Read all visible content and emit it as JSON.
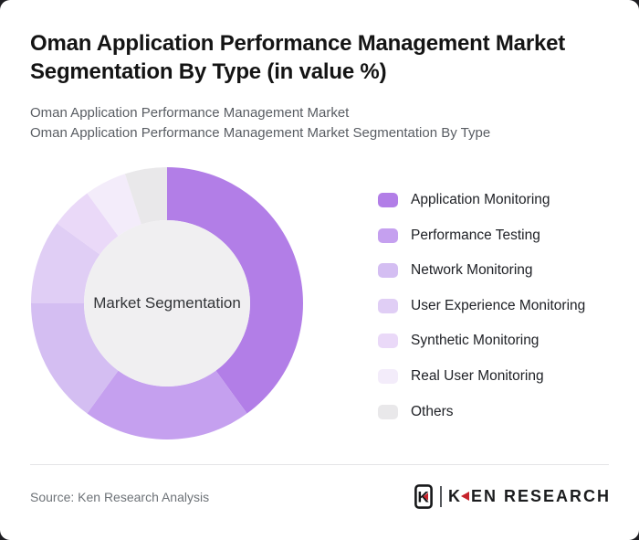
{
  "header": {
    "title_lines": [
      "Oman Application Performance Management Market",
      "Segmentation By Type (in value %)"
    ],
    "subtitle_lines": [
      "Oman Application Performance Management Market",
      "Oman Application Performance Management Market Segmentation By Type"
    ]
  },
  "chart_data": {
    "type": "pie",
    "variant": "donut",
    "title": "Oman Application Performance Management Market Segmentation By Type (in value %)",
    "center_label": "Market Segmentation",
    "categories": [
      "Application Monitoring",
      "Performance Testing",
      "Network Monitoring",
      "User Experience Monitoring",
      "Synthetic Monitoring",
      "Real User Monitoring",
      "Others"
    ],
    "values": [
      40,
      20,
      15,
      10,
      5,
      5,
      5
    ],
    "unit": "value %",
    "colors": [
      "#b27ee7",
      "#c5a0ef",
      "#d4bef2",
      "#e0cef5",
      "#ead9f8",
      "#f3ecfa",
      "#e9e8ea"
    ],
    "start_angle_deg": 0,
    "direction": "clockwise",
    "inner_radius_ratio": 0.61,
    "inner_circle_color": "#f0eff1",
    "legend_position": "right",
    "data_labels": "none"
  },
  "footer": {
    "source": "Source: Ken Research Analysis",
    "logo": {
      "badge_letter": "K",
      "brand_first_letter": "K",
      "brand_rest": "EN RESEARCH",
      "accent_color": "#c6232b"
    }
  }
}
